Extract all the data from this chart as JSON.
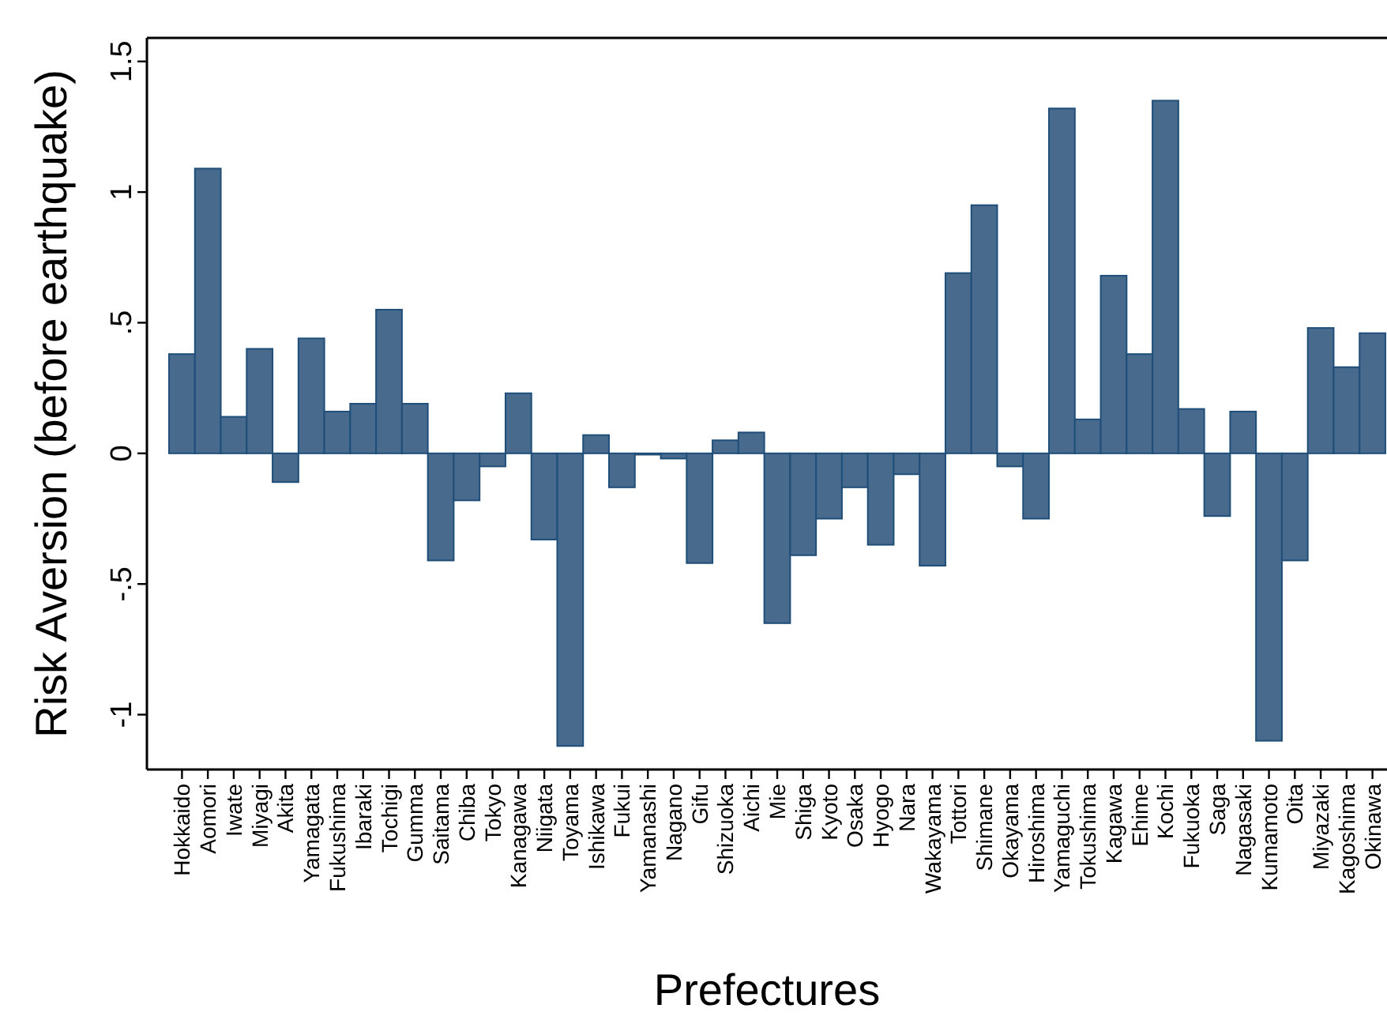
{
  "chart_data": {
    "type": "bar",
    "xlabel": "Prefectures",
    "ylabel": "Risk Aversion (before earthquake)",
    "categories": [
      "Hokkaido",
      "Aomori",
      "Iwate",
      "Miyagi",
      "Akita",
      "Yamagata",
      "Fukushima",
      "Ibaraki",
      "Tochigi",
      "Gumma",
      "Saitama",
      "Chiba",
      "Tokyo",
      "Kanagawa",
      "Niigata",
      "Toyama",
      "Ishikawa",
      "Fukui",
      "Yamanashi",
      "Nagano",
      "Gifu",
      "Shizuoka",
      "Aichi",
      "Mie",
      "Shiga",
      "Kyoto",
      "Osaka",
      "Hyogo",
      "Nara",
      "Wakayama",
      "Tottori",
      "Shimane",
      "Okayama",
      "Hiroshima",
      "Yamaguchi",
      "Tokushima",
      "Kagawa",
      "Ehime",
      "Kochi",
      "Fukuoka",
      "Saga",
      "Nagasaki",
      "Kumamoto",
      "Oita",
      "Miyazaki",
      "Kagoshima",
      "Okinawa"
    ],
    "values": [
      0.38,
      1.09,
      0.14,
      0.4,
      -0.11,
      0.44,
      0.16,
      0.19,
      0.55,
      0.19,
      -0.41,
      -0.18,
      -0.05,
      0.23,
      -0.33,
      -1.12,
      0.07,
      -0.13,
      -0.005,
      -0.02,
      -0.42,
      0.05,
      0.08,
      -0.65,
      -0.39,
      -0.25,
      -0.13,
      -0.35,
      -0.08,
      -0.43,
      0.69,
      0.95,
      -0.05,
      -0.25,
      1.32,
      0.13,
      0.68,
      0.38,
      1.35,
      0.17,
      -0.24,
      0.16,
      -1.1,
      -0.41,
      0.48,
      0.33,
      0.46
    ],
    "color": "#476a8d",
    "ylim": [
      -1.21,
      1.59
    ],
    "yticks": [
      {
        "value": -1,
        "label": "-1"
      },
      {
        "value": -0.5,
        "label": "-.5"
      },
      {
        "value": 0,
        "label": "0"
      },
      {
        "value": 0.5,
        "label": ".5"
      },
      {
        "value": 1,
        "label": "1"
      },
      {
        "value": 1.5,
        "label": "1.5"
      }
    ],
    "grid": false
  }
}
